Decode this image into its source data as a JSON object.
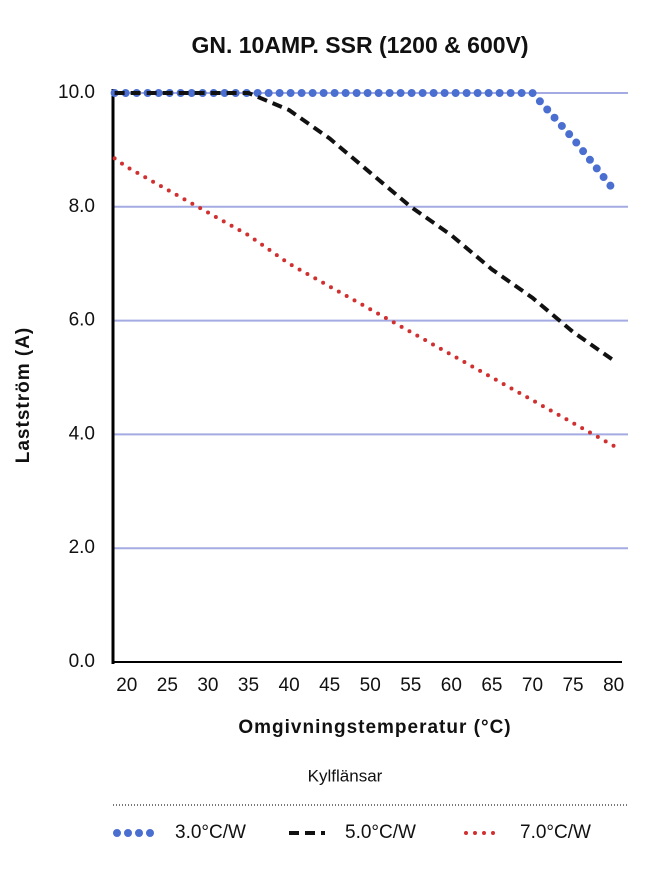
{
  "chart_data": {
    "type": "line",
    "title": "GN. 10AMP. SSR (1200 & 600V)",
    "x_label": "Omgivningstemperatur (°C)",
    "y_label": "Lastström (A)",
    "legend_title": "Kylflänsar",
    "x": [
      18.5,
      20,
      25,
      30,
      35,
      40,
      45,
      50,
      55,
      60,
      65,
      70,
      75,
      80
    ],
    "series": [
      {
        "name": "3.0°C/W",
        "color": "#4a6fd0",
        "values": [
          10,
          10,
          10,
          10,
          10,
          10,
          10,
          10,
          10,
          10,
          10,
          10,
          9.2,
          8.3
        ]
      },
      {
        "name": "5.0°C/W",
        "color": "#111111",
        "values": [
          10,
          10,
          10,
          10,
          10,
          9.7,
          9.2,
          8.6,
          8.0,
          7.5,
          6.9,
          6.4,
          5.8,
          5.3
        ]
      },
      {
        "name": "7.0°C/W",
        "color": "#d03030",
        "values": [
          8.85,
          8.7,
          8.3,
          7.9,
          7.5,
          7.0,
          6.6,
          6.2,
          5.8,
          5.4,
          5.0,
          4.6,
          4.2,
          3.8
        ]
      }
    ],
    "xlim": [
      18.3,
      81.4
    ],
    "ylim": [
      0,
      10
    ],
    "xticks": [
      20,
      25,
      30,
      35,
      40,
      45,
      50,
      55,
      60,
      65,
      70,
      75,
      80
    ],
    "yticks": [
      {
        "value": 0,
        "label": "0.0"
      },
      {
        "value": 2,
        "label": "2.0"
      },
      {
        "value": 4,
        "label": "4.0"
      },
      {
        "value": 6,
        "label": "6.0"
      },
      {
        "value": 8,
        "label": "8.0"
      },
      {
        "value": 10,
        "label": "10.0"
      }
    ],
    "grid": true
  }
}
